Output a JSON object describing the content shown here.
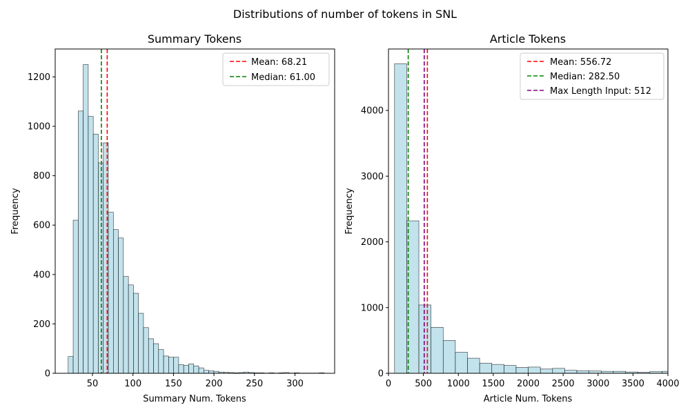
{
  "suptitle": "Distributions of number of tokens in SNL",
  "colors": {
    "bar_fill": "#add8e6",
    "bar_edge": "#000000",
    "mean": "#ff0000",
    "median": "#008000",
    "max_input": "#800080"
  },
  "chart_data": [
    {
      "type": "bar",
      "title": "Summary Tokens",
      "xlabel": "Summary Num. Tokens",
      "ylabel": "Frequency",
      "xlim": [
        4,
        349
      ],
      "ylim": [
        0,
        1313
      ],
      "xticks": [
        50,
        100,
        150,
        200,
        250,
        300
      ],
      "yticks": [
        0,
        200,
        400,
        600,
        800,
        1000,
        1200
      ],
      "bin_start": 20,
      "bin_width": 6.2,
      "values": [
        68,
        620,
        1062,
        1250,
        1040,
        968,
        852,
        933,
        652,
        582,
        548,
        392,
        358,
        324,
        243,
        185,
        140,
        120,
        96,
        70,
        65,
        65,
        35,
        32,
        38,
        30,
        22,
        12,
        10,
        8,
        5,
        4,
        3,
        2,
        3,
        5,
        3,
        2,
        2,
        1,
        2,
        1,
        2,
        3,
        1,
        2,
        1,
        1,
        1,
        1,
        2
      ],
      "lines": [
        {
          "label": "Mean: 68.21",
          "x": 68.21,
          "color": "#ff0000"
        },
        {
          "label": "Median: 61.00",
          "x": 61.0,
          "color": "#008000"
        }
      ],
      "legend": "top-right",
      "grid": false
    },
    {
      "type": "bar",
      "title": "Article Tokens",
      "xlabel": "Article Num. Tokens",
      "ylabel": "Frequency",
      "xlim": [
        0,
        4000
      ],
      "ylim": [
        0,
        4935
      ],
      "xticks": [
        0,
        500,
        1000,
        1500,
        2000,
        2500,
        3000,
        3500,
        4000
      ],
      "yticks": [
        0,
        1000,
        2000,
        3000,
        4000
      ],
      "bin_start": 87,
      "bin_width": 174,
      "values": [
        4710,
        2320,
        1040,
        700,
        500,
        320,
        230,
        155,
        135,
        120,
        90,
        95,
        65,
        75,
        45,
        40,
        35,
        30,
        30,
        20,
        15,
        25,
        30,
        20,
        15,
        20
      ],
      "lines": [
        {
          "label": "Mean: 556.72",
          "x": 556.72,
          "color": "#ff0000"
        },
        {
          "label": "Median: 282.50",
          "x": 282.5,
          "color": "#008000"
        },
        {
          "label": "Max Length Input: 512",
          "x": 512,
          "color": "#800080"
        }
      ],
      "legend": "top-right",
      "grid": false
    }
  ]
}
